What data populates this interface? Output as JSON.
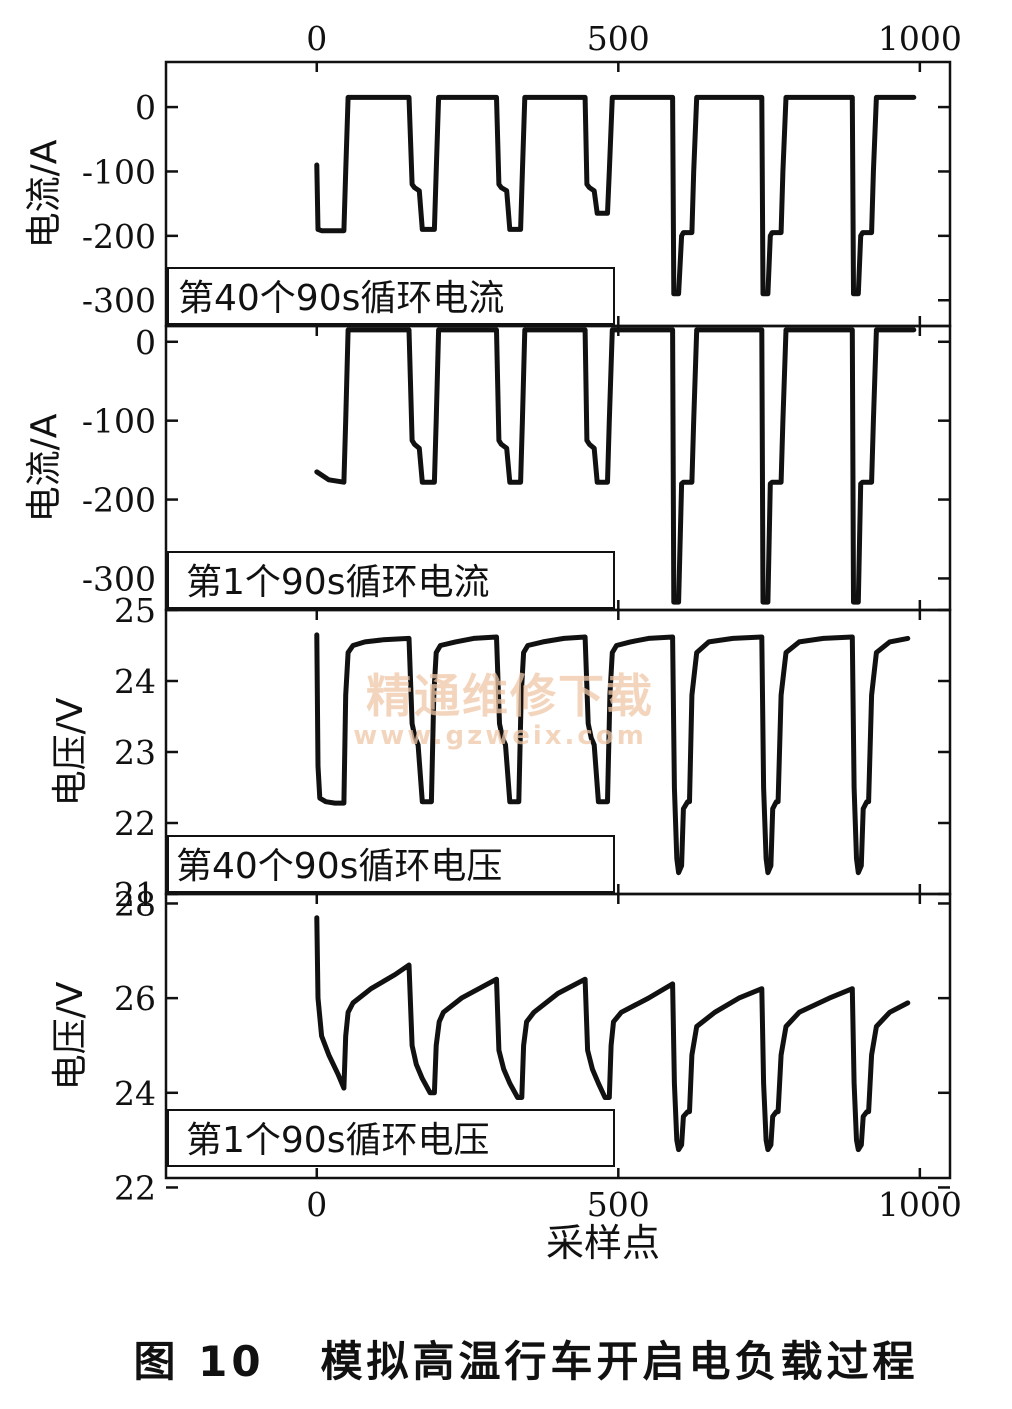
{
  "figure": {
    "caption": "图 10   模拟高温行车开启电负载过程",
    "watermark": "精通维修下载",
    "watermark_url": "www.gzweix.com"
  },
  "chart_data": [
    {
      "type": "line",
      "ylabel": "电流/A",
      "annotation": "第40个90s循环电流",
      "xlim": [
        -250,
        1050
      ],
      "ylim": [
        -340,
        70
      ],
      "x_ticks": [
        0,
        500,
        1000
      ],
      "x_tick_labels": [
        "0",
        "500",
        "1000"
      ],
      "x_tick_labels_position": "top",
      "y_ticks": [
        0,
        -100,
        -200,
        -300
      ],
      "y_tick_labels": [
        "0",
        "-100",
        "-200",
        "-300"
      ],
      "series": [
        {
          "x": [
            0,
            2,
            8,
            45,
            48,
            52,
            153,
            158,
            162,
            170,
            175,
            195,
            198,
            202,
            298,
            302,
            306,
            315,
            320,
            338,
            341,
            345,
            445,
            448,
            452,
            460,
            465,
            482,
            485,
            490,
            590,
            592,
            600,
            605,
            608,
            622,
            625,
            630,
            738,
            740,
            748,
            752,
            755,
            770,
            773,
            778,
            888,
            890,
            898,
            902,
            905,
            920,
            923,
            928,
            990
          ],
          "y": [
            -90,
            -190,
            -192,
            -192,
            -100,
            15,
            15,
            -120,
            -125,
            -130,
            -190,
            -190,
            -100,
            15,
            15,
            -120,
            -125,
            -130,
            -190,
            -190,
            -100,
            15,
            15,
            -120,
            -125,
            -130,
            -165,
            -165,
            -100,
            15,
            15,
            -290,
            -290,
            -200,
            -195,
            -195,
            -100,
            15,
            15,
            -290,
            -290,
            -200,
            -195,
            -195,
            -100,
            15,
            15,
            -290,
            -290,
            -200,
            -195,
            -195,
            -100,
            15,
            15
          ]
        }
      ]
    },
    {
      "type": "line",
      "ylabel": "电流/A",
      "annotation": "第1个90s循环电流",
      "xlim": [
        -250,
        1050
      ],
      "ylim": [
        -340,
        20
      ],
      "y_ticks": [
        0,
        -100,
        -200,
        -300
      ],
      "y_tick_labels": [
        "0",
        "-100",
        "-200",
        "-300"
      ],
      "series": [
        {
          "x": [
            0,
            20,
            45,
            48,
            52,
            153,
            158,
            162,
            170,
            175,
            195,
            198,
            202,
            298,
            302,
            306,
            315,
            320,
            338,
            341,
            345,
            445,
            448,
            452,
            460,
            465,
            482,
            485,
            490,
            590,
            592,
            600,
            605,
            608,
            622,
            625,
            630,
            738,
            740,
            748,
            752,
            755,
            770,
            773,
            778,
            888,
            890,
            898,
            902,
            905,
            920,
            923,
            928,
            990
          ],
          "y": [
            -165,
            -175,
            -178,
            -100,
            15,
            15,
            -125,
            -130,
            -135,
            -178,
            -178,
            -100,
            15,
            15,
            -125,
            -130,
            -135,
            -178,
            -178,
            -100,
            15,
            15,
            -125,
            -130,
            -135,
            -178,
            -178,
            -100,
            15,
            15,
            -330,
            -330,
            -180,
            -178,
            -178,
            -100,
            15,
            15,
            -330,
            -330,
            -180,
            -178,
            -178,
            -100,
            15,
            15,
            -330,
            -330,
            -180,
            -178,
            -178,
            -100,
            15,
            15
          ]
        }
      ]
    },
    {
      "type": "line",
      "ylabel": "电压/V",
      "annotation": "第40个90s循环电压",
      "xlim": [
        -250,
        1050
      ],
      "ylim": [
        21,
        25
      ],
      "y_ticks": [
        25,
        24,
        23,
        22,
        21
      ],
      "y_tick_labels": [
        "25",
        "24",
        "23",
        "22",
        "21"
      ],
      "series": [
        {
          "x": [
            0,
            2,
            5,
            15,
            30,
            45,
            48,
            52,
            60,
            80,
            110,
            153,
            158,
            163,
            168,
            175,
            190,
            194,
            198,
            205,
            230,
            260,
            298,
            303,
            308,
            313,
            320,
            335,
            339,
            343,
            350,
            375,
            410,
            445,
            450,
            455,
            460,
            467,
            482,
            486,
            490,
            497,
            520,
            550,
            590,
            593,
            597,
            600,
            605,
            608,
            615,
            618,
            622,
            630,
            650,
            690,
            738,
            741,
            745,
            748,
            753,
            756,
            762,
            765,
            770,
            778,
            800,
            840,
            888,
            891,
            895,
            898,
            903,
            906,
            912,
            915,
            920,
            928,
            950,
            980
          ],
          "y": [
            24.65,
            22.8,
            22.35,
            22.3,
            22.28,
            22.28,
            23.8,
            24.4,
            24.5,
            24.55,
            24.58,
            24.6,
            23.4,
            23.2,
            23.1,
            22.3,
            22.3,
            23.8,
            24.4,
            24.5,
            24.55,
            24.6,
            24.62,
            23.4,
            23.2,
            23.1,
            22.3,
            22.3,
            23.8,
            24.4,
            24.5,
            24.55,
            24.6,
            24.62,
            23.4,
            23.2,
            23.1,
            22.3,
            22.3,
            23.8,
            24.4,
            24.5,
            24.55,
            24.6,
            24.62,
            22.5,
            21.5,
            21.3,
            21.4,
            22.2,
            22.3,
            22.3,
            23.8,
            24.4,
            24.55,
            24.6,
            24.62,
            22.5,
            21.5,
            21.3,
            21.4,
            22.2,
            22.3,
            22.3,
            23.8,
            24.4,
            24.55,
            24.6,
            24.62,
            22.5,
            21.5,
            21.3,
            21.4,
            22.2,
            22.3,
            22.3,
            23.8,
            24.4,
            24.55,
            24.6
          ]
        }
      ]
    },
    {
      "type": "line",
      "ylabel": "电压/V",
      "annotation": "第1个90s循环电压",
      "xlabel": "采样点",
      "xlim": [
        -250,
        1050
      ],
      "ylim": [
        22.2,
        28.2
      ],
      "x_ticks": [
        0,
        500,
        1000
      ],
      "x_tick_labels": [
        "0",
        "500",
        "1000"
      ],
      "y_ticks": [
        28,
        26,
        24,
        22
      ],
      "y_tick_labels": [
        "28",
        "26",
        "24",
        "22"
      ],
      "series": [
        {
          "x": [
            0,
            2,
            8,
            20,
            35,
            45,
            48,
            52,
            60,
            90,
            130,
            153,
            158,
            165,
            175,
            188,
            195,
            198,
            203,
            210,
            240,
            298,
            302,
            310,
            320,
            333,
            340,
            343,
            348,
            360,
            400,
            445,
            449,
            457,
            467,
            478,
            485,
            488,
            492,
            505,
            550,
            590,
            593,
            597,
            600,
            605,
            608,
            615,
            618,
            622,
            630,
            660,
            700,
            738,
            741,
            745,
            748,
            753,
            756,
            762,
            765,
            770,
            778,
            800,
            850,
            888,
            891,
            895,
            898,
            903,
            906,
            912,
            915,
            920,
            928,
            950,
            980
          ],
          "y": [
            27.7,
            26.0,
            25.2,
            24.8,
            24.4,
            24.1,
            25.2,
            25.7,
            25.9,
            26.2,
            26.5,
            26.7,
            25.0,
            24.6,
            24.3,
            24.0,
            24.0,
            25.0,
            25.5,
            25.7,
            26.0,
            26.4,
            24.9,
            24.5,
            24.2,
            23.9,
            23.9,
            25.0,
            25.5,
            25.7,
            26.1,
            26.4,
            24.9,
            24.5,
            24.2,
            23.9,
            23.9,
            25.0,
            25.5,
            25.7,
            26.0,
            26.3,
            24.2,
            23.0,
            22.8,
            22.9,
            23.5,
            23.6,
            23.6,
            24.8,
            25.4,
            25.7,
            26.0,
            26.2,
            24.2,
            23.0,
            22.8,
            22.9,
            23.5,
            23.6,
            23.6,
            24.8,
            25.4,
            25.7,
            26.0,
            26.2,
            24.2,
            23.0,
            22.8,
            22.9,
            23.5,
            23.6,
            23.6,
            24.8,
            25.4,
            25.7,
            25.9
          ]
        }
      ]
    }
  ]
}
